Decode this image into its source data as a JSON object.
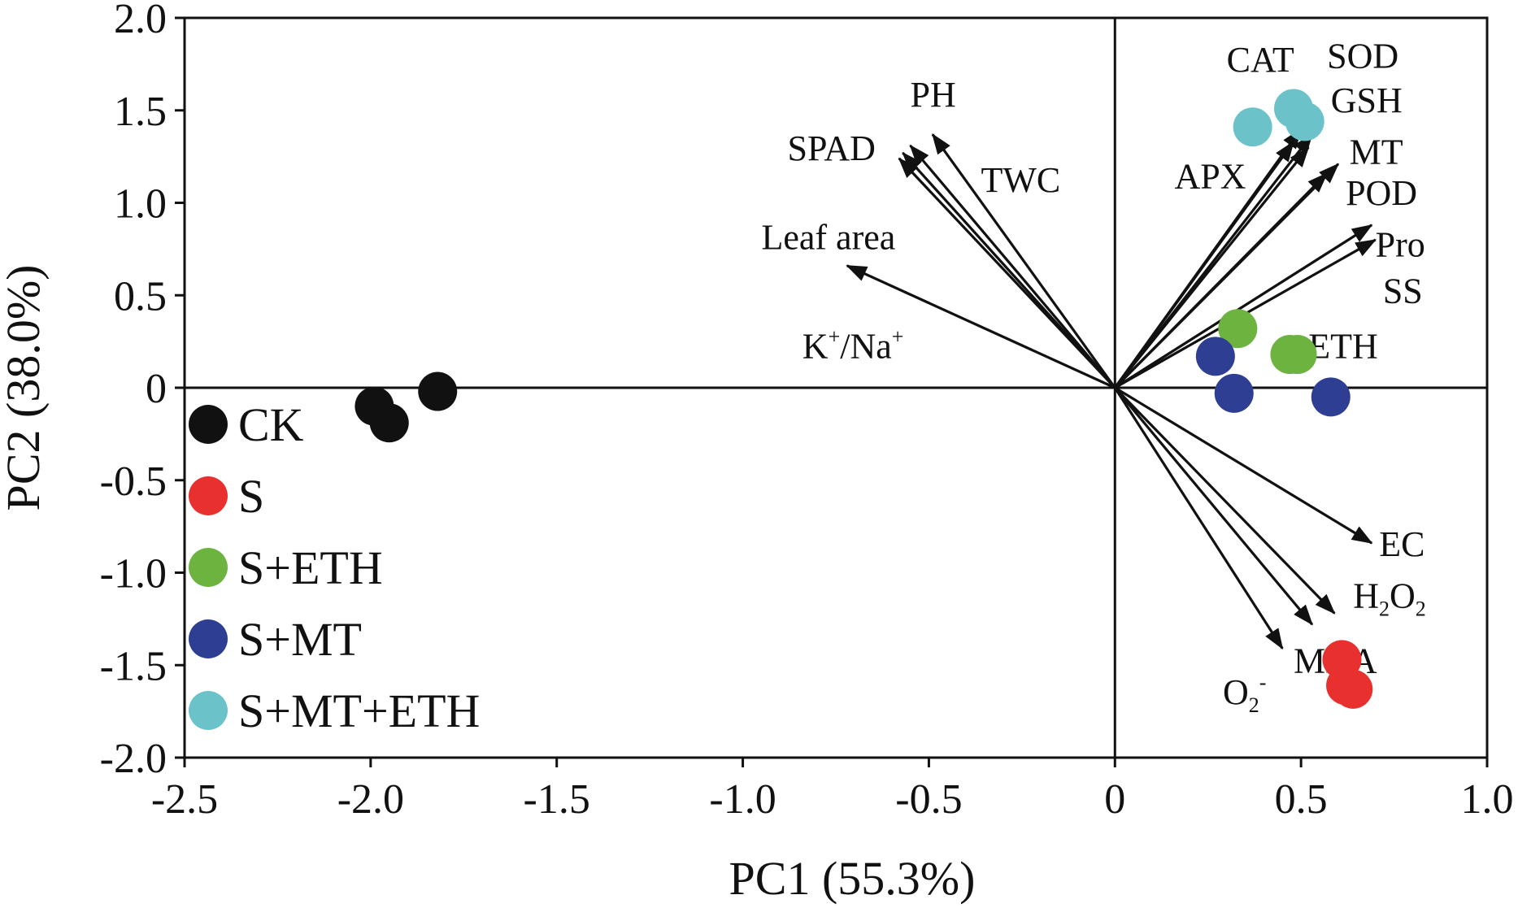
{
  "chart_data": {
    "type": "scatter",
    "subtype": "pca-biplot",
    "title": "",
    "xlabel": "PC1 (55.3%)",
    "ylabel": "PC2 (38.0%)",
    "xlim": [
      -2.5,
      1.0
    ],
    "ylim": [
      -2.0,
      2.0
    ],
    "xticks": [
      -2.5,
      -2.0,
      -1.5,
      -1.0,
      -0.5,
      0,
      0.5,
      1.0
    ],
    "yticks": [
      -2.0,
      -1.5,
      -1.0,
      -0.5,
      0,
      0.5,
      1.0,
      1.5,
      2.0
    ],
    "xtick_labels": [
      "-2.5",
      "-2.0",
      "-1.5",
      "-1.0",
      "-0.5",
      "0",
      "0.5",
      "1.0"
    ],
    "ytick_labels": [
      "-2.0",
      "-1.5",
      "-1.0",
      "-0.5",
      "0",
      "0.5",
      "1.0",
      "1.5",
      "2.0"
    ],
    "grid": false,
    "legend_position": "left",
    "series": [
      {
        "name": "CK",
        "color": "#111111",
        "points": [
          [
            -1.82,
            -0.02
          ],
          [
            -1.99,
            -0.1
          ],
          [
            -1.95,
            -0.19
          ]
        ]
      },
      {
        "name": "S",
        "color": "#e8302e",
        "points": [
          [
            0.61,
            -1.47
          ],
          [
            0.62,
            -1.61
          ],
          [
            0.64,
            -1.63
          ]
        ]
      },
      {
        "name": "S+ETH",
        "color": "#6db33f",
        "points": [
          [
            0.33,
            0.32
          ],
          [
            0.47,
            0.18
          ],
          [
            0.49,
            0.18
          ]
        ]
      },
      {
        "name": "S+MT",
        "color": "#2e3e92",
        "points": [
          [
            0.27,
            0.17
          ],
          [
            0.32,
            -0.03
          ],
          [
            0.58,
            -0.05
          ]
        ]
      },
      {
        "name": "S+MT+ETH",
        "color": "#6cc2c9",
        "points": [
          [
            0.37,
            1.41
          ],
          [
            0.48,
            1.51
          ],
          [
            0.51,
            1.44
          ]
        ]
      }
    ],
    "loadings": [
      {
        "name": "PH",
        "x": -0.49,
        "y": 1.37
      },
      {
        "name": "SPAD",
        "x": -0.57,
        "y": 1.27
      },
      {
        "name": "TWC",
        "x": -0.55,
        "y": 1.31
      },
      {
        "name": "Leaf area",
        "x": -0.72,
        "y": 0.66
      },
      {
        "name": "K+/Na+",
        "x": -0.58,
        "y": 1.24
      },
      {
        "name": "CAT",
        "x": 0.5,
        "y": 1.4
      },
      {
        "name": "APX",
        "x": 0.48,
        "y": 1.33
      },
      {
        "name": "SOD",
        "x": 0.53,
        "y": 1.37
      },
      {
        "name": "GSH",
        "x": 0.52,
        "y": 1.3
      },
      {
        "name": "MT",
        "x": 0.6,
        "y": 1.21
      },
      {
        "name": "POD",
        "x": 0.57,
        "y": 1.16
      },
      {
        "name": "Pro",
        "x": 0.69,
        "y": 0.88
      },
      {
        "name": "SS",
        "x": 0.7,
        "y": 0.8
      },
      {
        "name": "EC",
        "x": 0.69,
        "y": -0.84
      },
      {
        "name": "H2O2",
        "x": 0.59,
        "y": -1.22
      },
      {
        "name": "MDA",
        "x": 0.53,
        "y": -1.28
      },
      {
        "name": "O2-",
        "x": 0.45,
        "y": -1.41
      }
    ],
    "variable_labels": [
      {
        "text": "PH",
        "x": -0.55,
        "y": 1.52
      },
      {
        "text": "SPAD",
        "x": -0.88,
        "y": 1.23
      },
      {
        "text": "TWC",
        "x": -0.36,
        "y": 1.06
      },
      {
        "text": "Leaf area",
        "x": -0.95,
        "y": 0.75
      },
      {
        "text": "K",
        "sup1": "+",
        "text2": "/Na",
        "sup2": "+",
        "x": -0.84,
        "y": 0.16
      },
      {
        "text": "CAT",
        "x": 0.3,
        "y": 1.71
      },
      {
        "text": "APX",
        "x": 0.16,
        "y": 1.08
      },
      {
        "text": "SOD",
        "x": 0.57,
        "y": 1.73
      },
      {
        "text": "GSH",
        "x": 0.58,
        "y": 1.49
      },
      {
        "text": "MT",
        "x": 0.63,
        "y": 1.21
      },
      {
        "text": "POD",
        "x": 0.62,
        "y": 0.99
      },
      {
        "text": "Pro",
        "x": 0.7,
        "y": 0.71
      },
      {
        "text": "SS",
        "x": 0.72,
        "y": 0.46
      },
      {
        "text": "ETH",
        "x": 0.52,
        "y": 0.16
      },
      {
        "text": "EC",
        "x": 0.71,
        "y": -0.91
      },
      {
        "text": "H",
        "sub1": "2",
        "text2": "O",
        "sub2": "2",
        "x": 0.64,
        "y": -1.19
      },
      {
        "text": "MDA",
        "x": 0.48,
        "y": -1.54
      },
      {
        "text": "O",
        "sub1": "2",
        "sup1": "-",
        "x": 0.29,
        "y": -1.71
      }
    ]
  }
}
